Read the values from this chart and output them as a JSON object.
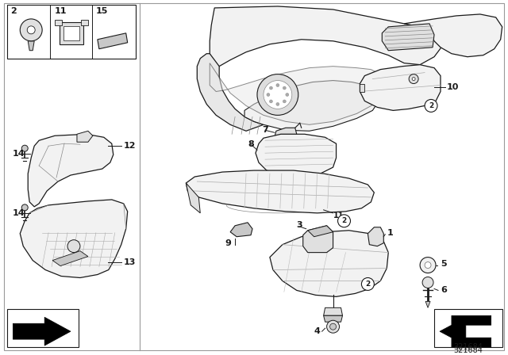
{
  "bg_color": "#ffffff",
  "diagram_id": "321684",
  "lw_main": 0.9,
  "lw_thin": 0.5,
  "lc": "#1a1a1a",
  "fc_light": "#f2f2f2",
  "fc_mid": "#e0e0e0",
  "fc_dark": "#c8c8c8"
}
